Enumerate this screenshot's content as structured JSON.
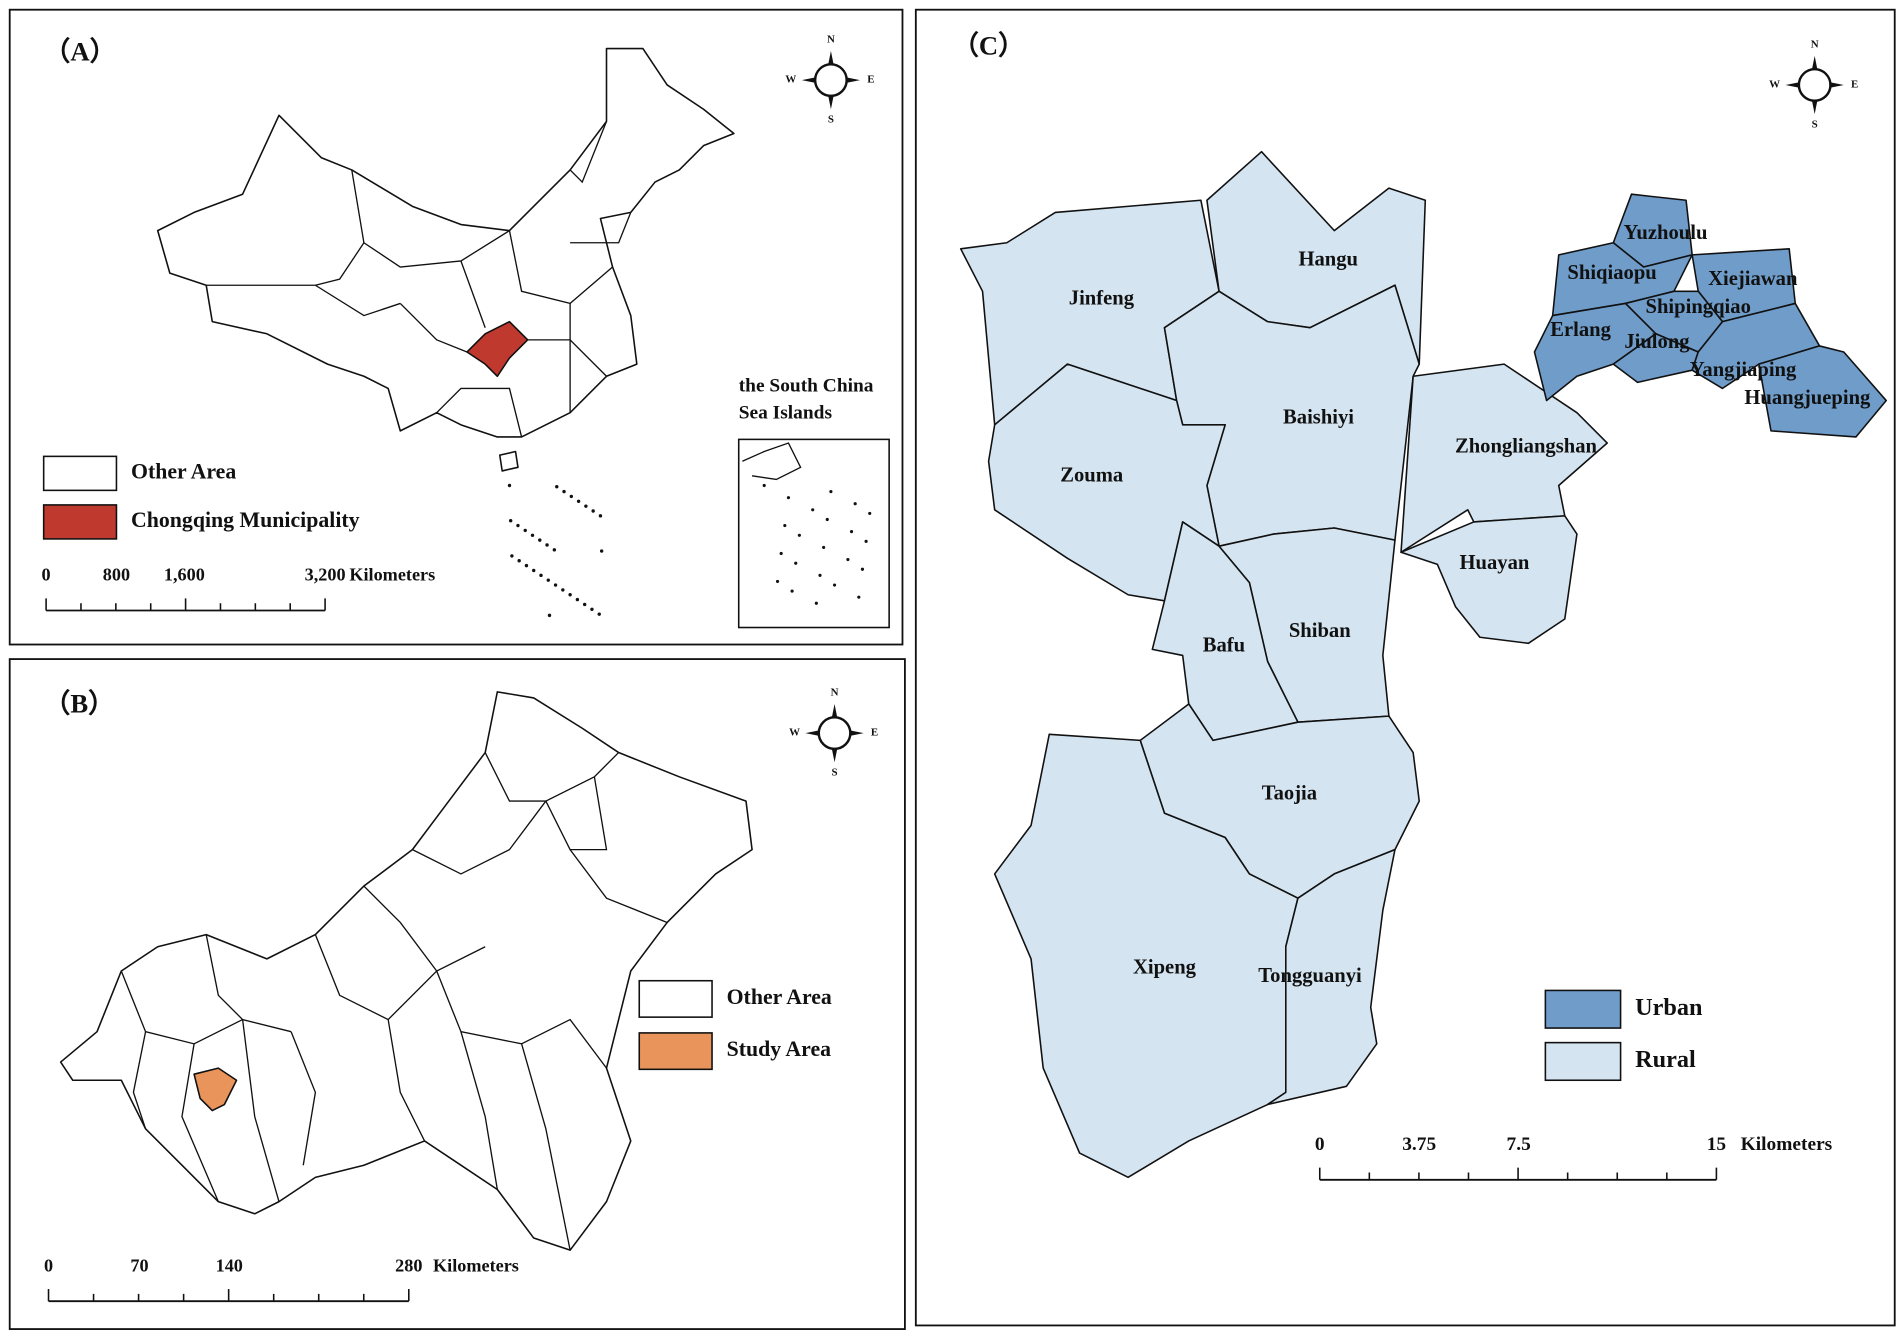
{
  "panels": [
    {
      "label": "（A）",
      "legend": [
        {
          "label": "Other Area",
          "color": "#ffffff"
        },
        {
          "label": "Chongqing Municipality",
          "color": "#c0392f"
        }
      ],
      "scale": {
        "ticks": [
          "0",
          "800",
          "1,600",
          "3,200"
        ],
        "unit": "Kilometers"
      },
      "inset": [
        "the South China",
        "Sea Islands"
      ],
      "compass": [
        "N",
        "S",
        "W",
        "E"
      ]
    },
    {
      "label": "（B）",
      "legend": [
        {
          "label": "Other Area",
          "color": "#ffffff"
        },
        {
          "label": "Study Area",
          "color": "#e8945a"
        }
      ],
      "scale": {
        "ticks": [
          "0",
          "70",
          "140",
          "280"
        ],
        "unit": "Kilometers"
      },
      "compass": [
        "N",
        "S",
        "W",
        "E"
      ]
    },
    {
      "label": "（C）",
      "legend": [
        {
          "label": "Urban",
          "color": "#6f9cc9"
        },
        {
          "label": "Rural",
          "color": "#d4e4f0"
        }
      ],
      "scale": {
        "ticks": [
          "0",
          "3.75",
          "7.5",
          "15"
        ],
        "unit": "Kilometers"
      },
      "compass": [
        "N",
        "S",
        "W",
        "E"
      ],
      "regions": [
        "Jinfeng",
        "Hangu",
        "Baishiyi",
        "Zouma",
        "Zhongliangshan",
        "Huayan",
        "Shiban",
        "Bafu",
        "Taojia",
        "Xipeng",
        "Tongguanyi",
        "Yuzhoulu",
        "Shiqiaopu",
        "Xiejiawan",
        "Shipingqiao",
        "Erlang",
        "Jiulong",
        "Yangjiaping",
        "Huangjueping"
      ]
    }
  ]
}
